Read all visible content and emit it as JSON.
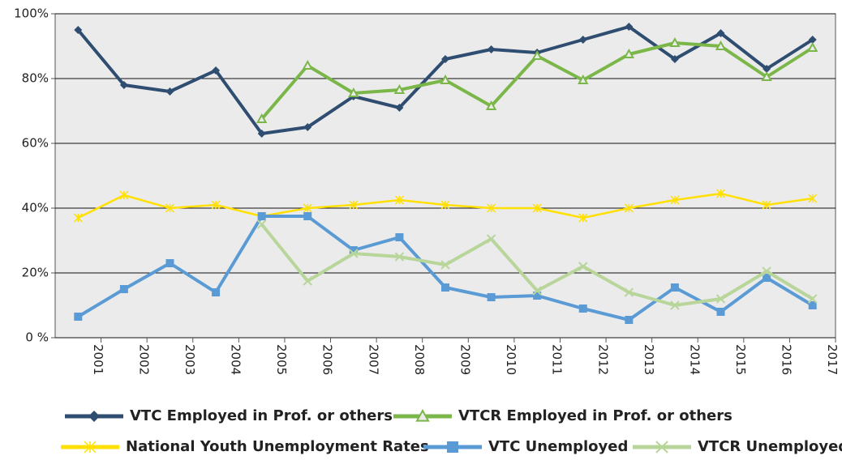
{
  "chart_data": {
    "type": "line",
    "categories": [
      "2001",
      "2002",
      "2003",
      "2004",
      "2005",
      "2006",
      "2007",
      "2008",
      "2009",
      "2010",
      "2011",
      "2012",
      "2013",
      "2014",
      "2015",
      "2016",
      "2017"
    ],
    "ylim": [
      0,
      100
    ],
    "yticks": [
      {
        "value": 0,
        "label": "0 %"
      },
      {
        "value": 20,
        "label": "20%"
      },
      {
        "value": 40,
        "label": "40%"
      },
      {
        "value": 60,
        "label": "60%"
      },
      {
        "value": 80,
        "label": "80%"
      },
      {
        "value": 100,
        "label": "100%"
      }
    ],
    "grid": true,
    "legend": "bottom",
    "series": [
      {
        "name": "VTC Employed in Prof. or others",
        "color": "#2e4d70",
        "marker": "diamond",
        "values": [
          95,
          78,
          76,
          82.5,
          63,
          65,
          74.5,
          71,
          86,
          89,
          88,
          92,
          96,
          86,
          94,
          83,
          92
        ]
      },
      {
        "name": "VTCR Employed in Prof. or others",
        "color": "#7ab648",
        "marker": "triangle",
        "values": [
          null,
          null,
          null,
          null,
          67.5,
          84,
          75.5,
          76.5,
          79.5,
          71.5,
          87,
          79.5,
          87.5,
          91,
          90,
          80.5,
          89.5
        ]
      },
      {
        "name": "National Youth Unemployment Rates",
        "color": "#ffe000",
        "marker": "asterisk",
        "values": [
          37,
          44,
          40,
          41,
          37.5,
          40,
          41,
          42.5,
          41,
          40,
          40,
          37,
          40,
          42.5,
          44.5,
          41,
          43
        ]
      },
      {
        "name": "VTC Unemployed",
        "color": "#5b9bd5",
        "marker": "square",
        "values": [
          6.5,
          15,
          23,
          14,
          37.5,
          37.5,
          27,
          31,
          15.5,
          12.5,
          13,
          9,
          5.5,
          15.5,
          8,
          18.5,
          10
        ]
      },
      {
        "name": "VTCR Unemployed",
        "color": "#b8d59a",
        "marker": "x",
        "values": [
          null,
          null,
          null,
          null,
          35,
          17.5,
          26,
          25,
          22.5,
          30.5,
          14.5,
          22,
          14,
          10,
          12,
          20.5,
          12
        ]
      }
    ]
  }
}
